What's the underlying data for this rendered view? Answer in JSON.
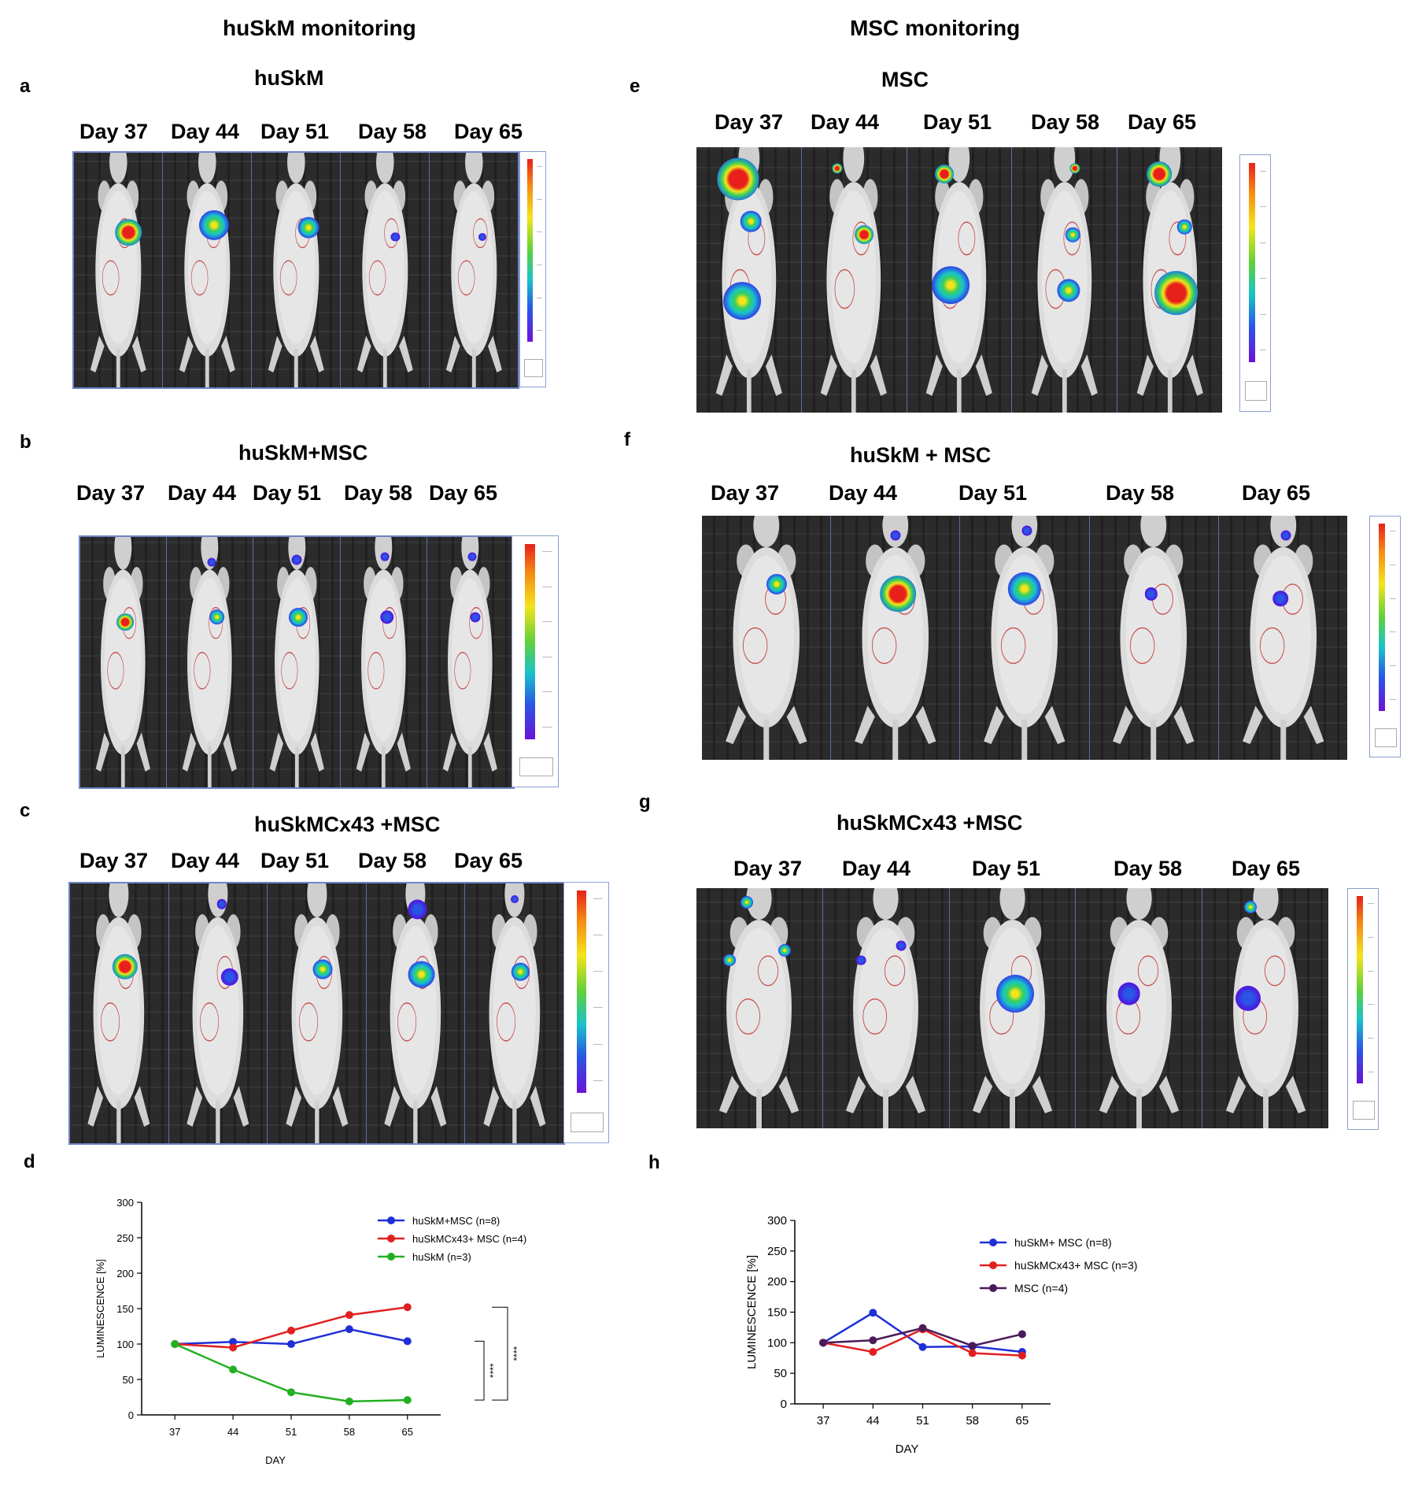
{
  "headers": {
    "left": "huSkM monitoring",
    "right": "MSC monitoring"
  },
  "panels": {
    "a": {
      "letter": "a",
      "title": "huSkM",
      "days": [
        "Day 37",
        "Day 44",
        "Day 51",
        "Day 58",
        "Day 65"
      ]
    },
    "b": {
      "letter": "b",
      "title": "huSkM+MSC",
      "days": [
        "Day 37",
        "Day 44",
        "Day 51",
        "Day 58",
        "Day 65"
      ]
    },
    "c": {
      "letter": "c",
      "title": "huSkMCx43 +MSC",
      "days": [
        "Day 37",
        "Day 44",
        "Day 51",
        "Day 58",
        "Day 65"
      ]
    },
    "d": {
      "letter": "d"
    },
    "e": {
      "letter": "e",
      "title": "MSC",
      "days": [
        "Day 37",
        "Day 44",
        "Day 51",
        "Day 58",
        "Day 65"
      ]
    },
    "f": {
      "letter": "f",
      "title": "huSkM + MSC",
      "days": [
        "Day 37",
        "Day 44",
        "Day 51",
        "Day 58",
        "Day 65"
      ]
    },
    "g": {
      "letter": "g",
      "title": "huSkMCx43 +MSC",
      "days": [
        "Day 37",
        "Day 44",
        "Day 51",
        "Day 58",
        "Day 65"
      ]
    },
    "h": {
      "letter": "h"
    }
  },
  "chart_data": [
    {
      "panel": "d",
      "type": "line",
      "xlabel": "DAY",
      "ylabel": "LUMINESCENCE [%]",
      "x": [
        37,
        44,
        51,
        58,
        65
      ],
      "ylim": [
        0,
        300
      ],
      "yticks": [
        0,
        50,
        100,
        150,
        200,
        250,
        300
      ],
      "legend_position": "top-right",
      "series": [
        {
          "name": "huSkM+MSC (n=8)",
          "color": "#1f2fd6",
          "values": [
            100,
            103,
            100,
            121,
            104
          ]
        },
        {
          "name": "huSkMCx43+ MSC (n=4)",
          "color": "#e02020",
          "values": [
            100,
            95,
            119,
            141,
            152
          ]
        },
        {
          "name": "huSkM (n=3)",
          "color": "#22b022",
          "values": [
            100,
            64,
            32,
            19,
            21
          ]
        }
      ],
      "annotations": [
        "****",
        "****"
      ]
    },
    {
      "panel": "h",
      "type": "line",
      "xlabel": "DAY",
      "ylabel": "LUMINESCENCE [%]",
      "x": [
        37,
        44,
        51,
        58,
        65
      ],
      "ylim": [
        0,
        300
      ],
      "yticks": [
        0,
        50,
        100,
        150,
        200,
        250,
        300
      ],
      "legend_position": "top-right",
      "series": [
        {
          "name": "huSkM+ MSC (n=8)",
          "color": "#1f2fd6",
          "values": [
            100,
            149,
            93,
            94,
            85
          ]
        },
        {
          "name": "huSkMCx43+ MSC (n=3)",
          "color": "#e02020",
          "values": [
            100,
            85,
            122,
            83,
            79
          ]
        },
        {
          "name": "MSC (n=4)",
          "color": "#4a1a5a",
          "values": [
            100,
            104,
            124,
            95,
            114
          ]
        }
      ]
    }
  ]
}
